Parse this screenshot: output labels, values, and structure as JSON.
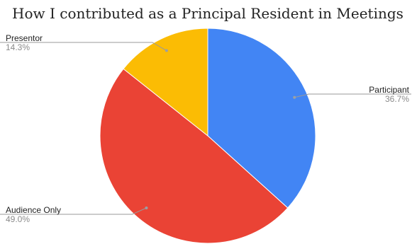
{
  "chart_data": {
    "type": "pie",
    "title": "How I contributed as a Principal Resident in Meetings",
    "slices": [
      {
        "name": "Participant",
        "value": 36.7,
        "label": "36.7%",
        "color": "#4285f4"
      },
      {
        "name": "Audience Only",
        "value": 49.0,
        "label": "49.0%",
        "color": "#ea4335"
      },
      {
        "name": "Presentor",
        "value": 14.3,
        "label": "14.3%",
        "color": "#fbbc04"
      }
    ],
    "start_angle_deg": 0,
    "direction": "clockwise",
    "legend": "none"
  }
}
